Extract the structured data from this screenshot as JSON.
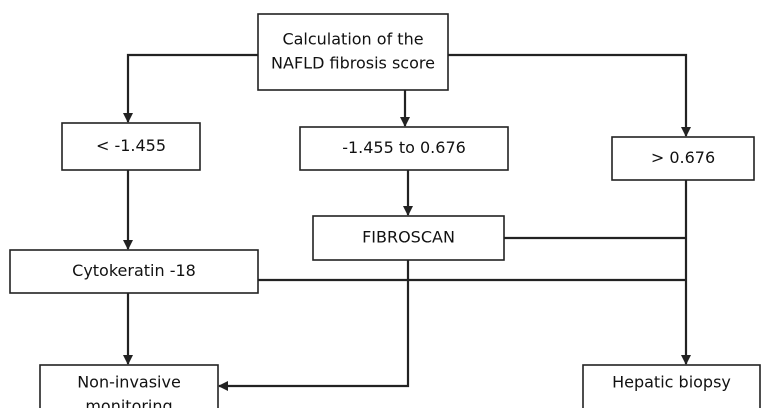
{
  "nodes": [
    {
      "lines": [
        "Calculation of the",
        "NAFLD fibrosis score"
      ]
    },
    {
      "lines": [
        "< -1.455"
      ]
    },
    {
      "lines": [
        "-1.455 to 0.676"
      ]
    },
    {
      "lines": [
        "> 0.676"
      ]
    },
    {
      "lines": [
        "FIBROSCAN"
      ]
    },
    {
      "lines": [
        "Cytokeratin -18"
      ]
    },
    {
      "lines": [
        "Non-invasive",
        "monitoring"
      ]
    },
    {
      "lines": [
        "Hepatic biopsy"
      ]
    }
  ]
}
